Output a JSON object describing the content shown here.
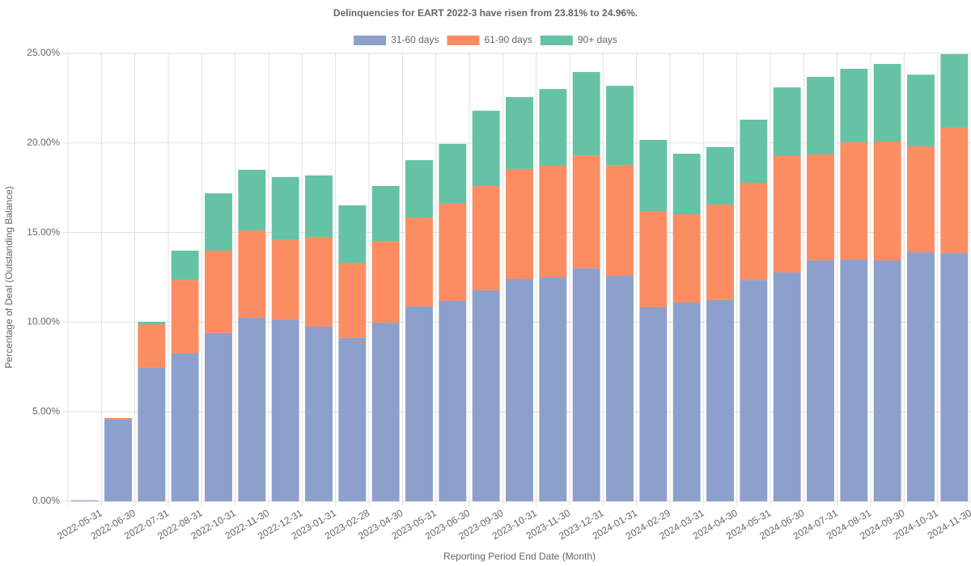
{
  "chart_data": {
    "type": "stacked_bar",
    "title": "Delinquencies for EART 2022-3 have risen from 23.81% to 24.96%.",
    "x_label": "Reporting Period End Date (Month)",
    "y_label": "Percentage of Deal (Outstanding Balance)",
    "categories": [
      "2022-05-31",
      "2022-06-30",
      "2022-07-31",
      "2022-08-31",
      "2022-10-31",
      "2022-11-30",
      "2022-12-31",
      "2023-01-31",
      "2023-02-28",
      "2023-04-30",
      "2023-05-31",
      "2023-06-30",
      "2023-09-30",
      "2023-10-31",
      "2023-11-30",
      "2023-12-31",
      "2024-01-31",
      "2024-02-29",
      "2024-03-31",
      "2024-04-30",
      "2024-05-31",
      "2024-06-30",
      "2024-07-31",
      "2024-08-31",
      "2024-09-30",
      "2024-10-31",
      "2024-11-30"
    ],
    "series": [
      {
        "name": "31-60 days",
        "color": "#8da0cb",
        "values": [
          0.05,
          4.56,
          7.45,
          8.26,
          9.39,
          10.24,
          10.15,
          9.75,
          9.12,
          9.97,
          10.88,
          11.19,
          11.78,
          12.41,
          12.5,
          13.0,
          12.59,
          10.83,
          11.1,
          11.24,
          12.36,
          12.77,
          13.45,
          13.49,
          13.45,
          13.9,
          13.85
        ]
      },
      {
        "name": "61-90 days",
        "color": "#fc8d62",
        "values": [
          0,
          0.09,
          2.43,
          4.1,
          4.6,
          4.88,
          4.43,
          5.01,
          4.19,
          4.56,
          4.96,
          5.42,
          5.82,
          6.14,
          6.23,
          6.31,
          6.18,
          5.33,
          4.92,
          5.32,
          5.42,
          6.5,
          5.91,
          6.55,
          6.63,
          5.91,
          7.0
        ]
      },
      {
        "name": "90+ days",
        "color": "#66c2a5",
        "values": [
          0,
          0,
          0.14,
          1.63,
          3.2,
          3.38,
          3.52,
          3.43,
          3.21,
          3.07,
          3.2,
          3.34,
          4.2,
          4.01,
          4.28,
          4.65,
          4.42,
          4.01,
          3.38,
          3.21,
          3.52,
          3.83,
          4.33,
          4.1,
          4.33,
          4.0,
          4.11
        ]
      }
    ],
    "ylim": [
      0,
      25
    ],
    "yticks": [
      {
        "value": 0,
        "label": "0.00%"
      },
      {
        "value": 5,
        "label": "5.00%"
      },
      {
        "value": 10,
        "label": "10.00%"
      },
      {
        "value": 15,
        "label": "15.00%"
      },
      {
        "value": 20,
        "label": "20.00%"
      },
      {
        "value": 25,
        "label": "25.00%"
      }
    ],
    "grid": true,
    "legend": "top"
  }
}
